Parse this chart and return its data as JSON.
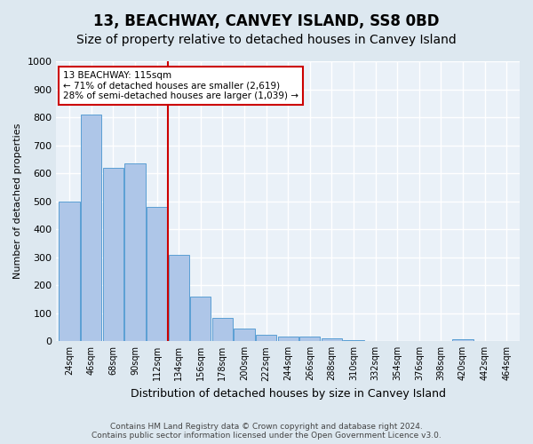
{
  "title": "13, BEACHWAY, CANVEY ISLAND, SS8 0BD",
  "subtitle": "Size of property relative to detached houses in Canvey Island",
  "xlabel": "Distribution of detached houses by size in Canvey Island",
  "ylabel": "Number of detached properties",
  "footer_line1": "Contains HM Land Registry data © Crown copyright and database right 2024.",
  "footer_line2": "Contains public sector information licensed under the Open Government Licence v3.0.",
  "bar_values": [
    500,
    810,
    620,
    635,
    480,
    310,
    160,
    82,
    45,
    22,
    18,
    18,
    10,
    5,
    2,
    0,
    0,
    0,
    7,
    0,
    0
  ],
  "bin_labels": [
    "24sqm",
    "46sqm",
    "68sqm",
    "90sqm",
    "112sqm",
    "134sqm",
    "156sqm",
    "178sqm",
    "200sqm",
    "222sqm",
    "244sqm",
    "266sqm",
    "288sqm",
    "310sqm",
    "332sqm",
    "354sqm",
    "376sqm",
    "398sqm",
    "420sqm",
    "442sqm",
    "464sqm"
  ],
  "bar_color": "#aec6e8",
  "bar_edge_color": "#5a9fd4",
  "property_label": "13 BEACHWAY: 115sqm",
  "annotation_line1": "← 71% of detached houses are smaller (2,619)",
  "annotation_line2": "28% of semi-detached houses are larger (1,039) →",
  "vline_color": "#cc0000",
  "annotation_box_edge": "#cc0000",
  "vline_x": 4.5,
  "ylim": [
    0,
    1000
  ],
  "yticks": [
    0,
    100,
    200,
    300,
    400,
    500,
    600,
    700,
    800,
    900,
    1000
  ],
  "bg_color": "#dde8f0",
  "plot_bg_color": "#eaf1f8",
  "grid_color": "#ffffff",
  "title_fontsize": 12,
  "subtitle_fontsize": 10
}
